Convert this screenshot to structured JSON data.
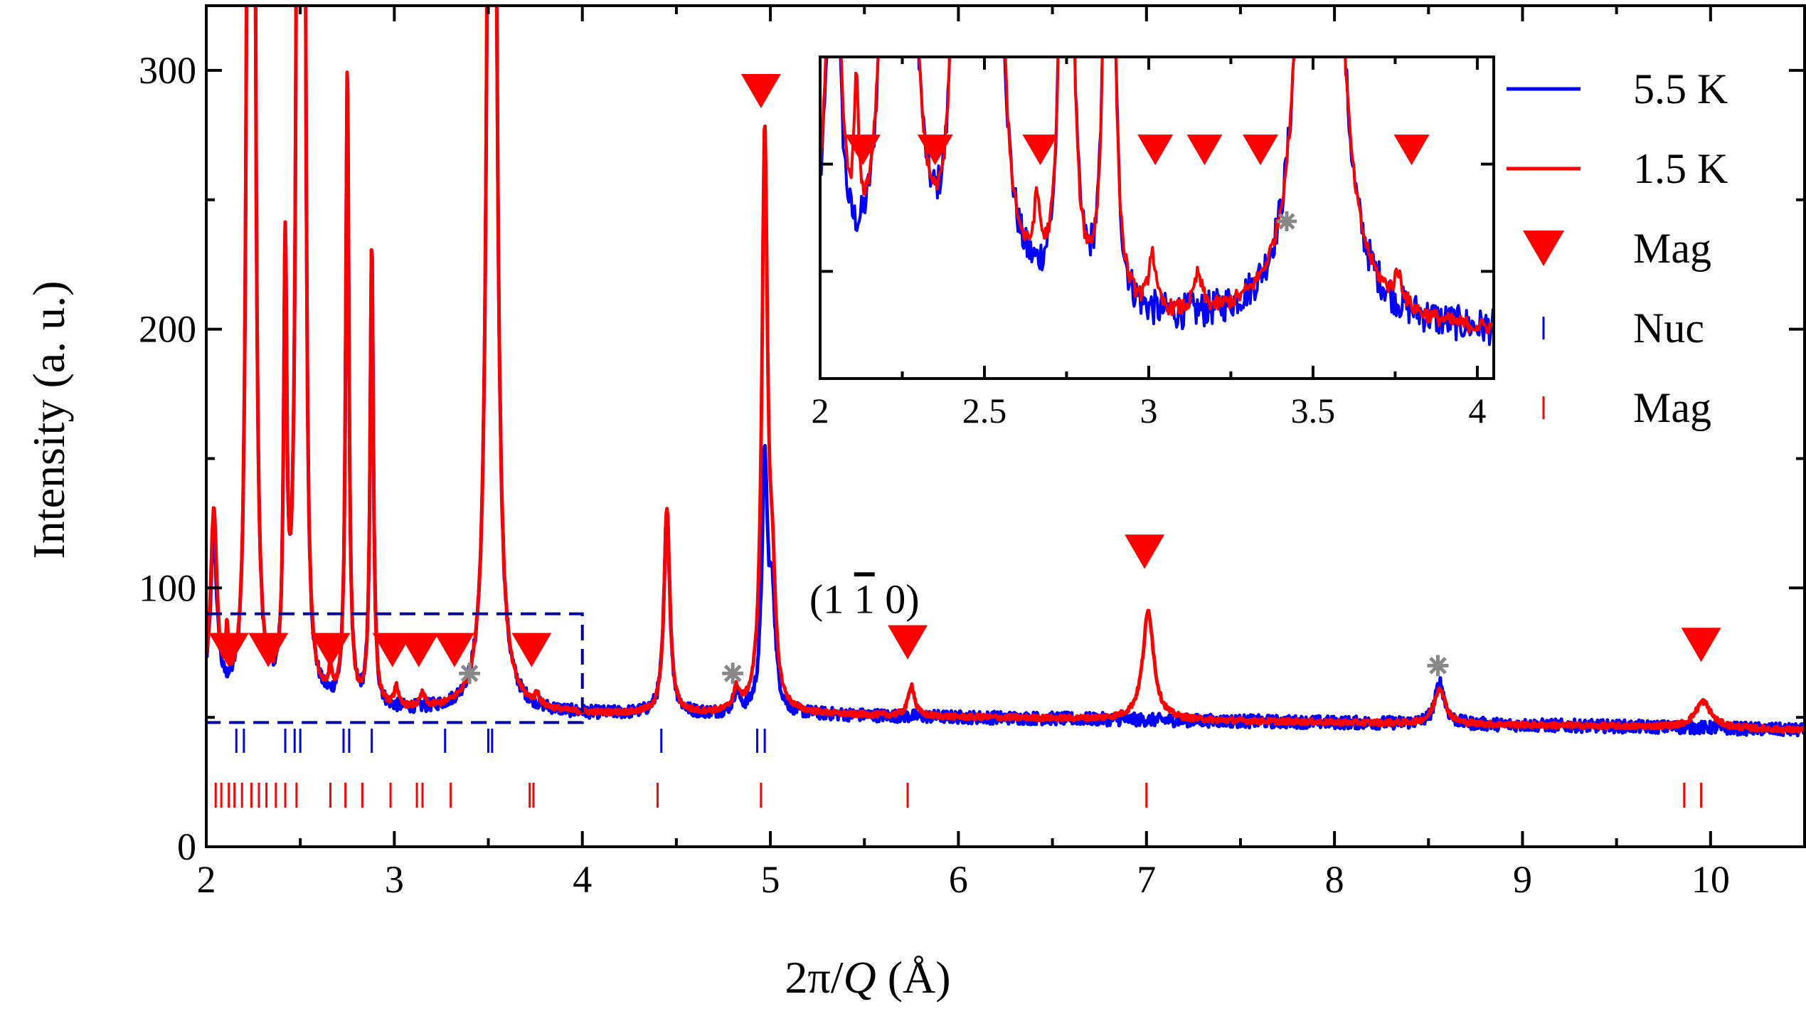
{
  "chart_data": {
    "type": "line",
    "xlabel_prefix": "2π/",
    "xlabel_var": "Q",
    "xlabel_suffix": " (Å)",
    "ylabel": "Intensity (a. u.)",
    "xlim": [
      2,
      10.5
    ],
    "ylim": [
      0,
      325
    ],
    "xticks": [
      2,
      3,
      4,
      5,
      6,
      7,
      8,
      9,
      10
    ],
    "yticks": [
      0,
      100,
      200,
      300
    ],
    "baseline": [
      [
        2.0,
        58
      ],
      [
        2.1,
        55
      ],
      [
        2.3,
        54
      ],
      [
        2.6,
        53
      ],
      [
        3.0,
        52
      ],
      [
        3.3,
        52
      ],
      [
        3.6,
        52
      ],
      [
        4.0,
        51
      ],
      [
        4.5,
        51
      ],
      [
        5.2,
        51
      ],
      [
        6.0,
        50
      ],
      [
        7.0,
        49
      ],
      [
        8.0,
        48
      ],
      [
        9.0,
        47
      ],
      [
        10.0,
        46
      ],
      [
        10.5,
        45
      ]
    ],
    "series": [
      {
        "name": "5.5 K",
        "color": "#0000ff",
        "peaks": [
          [
            2.04,
            60,
            0.02
          ],
          [
            2.22,
            270,
            0.012
          ],
          [
            2.25,
            500,
            0.012
          ],
          [
            2.42,
            165,
            0.01
          ],
          [
            2.49,
            500,
            0.012
          ],
          [
            2.52,
            400,
            0.01
          ],
          [
            2.75,
            245,
            0.01
          ],
          [
            2.88,
            180,
            0.01
          ],
          [
            3.51,
            500,
            0.015
          ],
          [
            3.53,
            300,
            0.02
          ],
          [
            4.45,
            80,
            0.018
          ],
          [
            4.82,
            8,
            0.02
          ],
          [
            4.97,
            95,
            0.018
          ],
          [
            5.01,
            40,
            0.02
          ],
          [
            8.56,
            16,
            0.03
          ]
        ]
      },
      {
        "name": "1.5 K",
        "color": "#ff0000",
        "peaks": [
          [
            2.04,
            70,
            0.02
          ],
          [
            2.11,
            20,
            0.008
          ],
          [
            2.22,
            270,
            0.012
          ],
          [
            2.25,
            500,
            0.012
          ],
          [
            2.42,
            165,
            0.01
          ],
          [
            2.49,
            500,
            0.012
          ],
          [
            2.52,
            400,
            0.01
          ],
          [
            2.66,
            9,
            0.012
          ],
          [
            2.75,
            245,
            0.01
          ],
          [
            2.88,
            180,
            0.01
          ],
          [
            3.01,
            8,
            0.012
          ],
          [
            3.15,
            5,
            0.015
          ],
          [
            3.51,
            500,
            0.015
          ],
          [
            3.53,
            300,
            0.02
          ],
          [
            3.76,
            4,
            0.015
          ],
          [
            4.45,
            80,
            0.018
          ],
          [
            4.82,
            8,
            0.02
          ],
          [
            4.97,
            220,
            0.018
          ],
          [
            5.01,
            40,
            0.02
          ],
          [
            5.75,
            12,
            0.02
          ],
          [
            7.01,
            42,
            0.035
          ],
          [
            8.56,
            14,
            0.035
          ],
          [
            9.96,
            10,
            0.05
          ]
        ]
      }
    ],
    "mag_triangles_main": [
      [
        2.12,
        76
      ],
      [
        2.33,
        76
      ],
      [
        2.66,
        76
      ],
      [
        2.99,
        76
      ],
      [
        3.13,
        76
      ],
      [
        3.32,
        76
      ],
      [
        3.73,
        76
      ],
      [
        4.95,
        292
      ],
      [
        5.73,
        79
      ],
      [
        6.99,
        114
      ],
      [
        9.95,
        78
      ]
    ],
    "asterisks_main": [
      [
        3.4,
        67
      ],
      [
        4.8,
        67
      ],
      [
        8.55,
        70
      ]
    ],
    "nuc_ticks": [
      2.16,
      2.2,
      2.42,
      2.47,
      2.5,
      2.73,
      2.76,
      2.88,
      3.27,
      3.5,
      3.52,
      4.42,
      4.93,
      4.97
    ],
    "mag_ticks": [
      2.05,
      2.08,
      2.12,
      2.15,
      2.19,
      2.24,
      2.28,
      2.32,
      2.37,
      2.42,
      2.48,
      2.66,
      2.74,
      2.83,
      2.98,
      3.12,
      3.15,
      3.3,
      3.72,
      3.74,
      4.4,
      4.95,
      5.73,
      7.0,
      9.86,
      9.95
    ],
    "annotation": {
      "text_open": "(1 ",
      "text_bar": "1",
      "text_close": " 0)",
      "x": 5.5,
      "y": 100
    },
    "inset": {
      "xlim": [
        2,
        4.05
      ],
      "ylim": [
        45,
        90
      ],
      "xticks": [
        2,
        2.5,
        3,
        3.5,
        4
      ],
      "xticklabels": [
        "2",
        "2.5",
        "3",
        "3.5",
        "4"
      ],
      "yticks": [
        60,
        75
      ],
      "triangles": [
        2.13,
        2.35,
        2.67,
        3.02,
        3.17,
        3.34,
        3.8
      ],
      "triangle_y": 77,
      "asterisks": [
        [
          3.42,
          67
        ]
      ]
    },
    "zoom_box": {
      "x": [
        2,
        4
      ],
      "y": [
        48,
        90
      ]
    },
    "legend": [
      {
        "label": "5.5 K",
        "kind": "line",
        "color": "#0000ff"
      },
      {
        "label": "1.5 K",
        "kind": "line",
        "color": "#ff0000"
      },
      {
        "label": "Mag",
        "kind": "triangle",
        "color": "#ff0000"
      },
      {
        "label": "Nuc",
        "kind": "tick",
        "color": "#0000ff"
      },
      {
        "label": "Mag",
        "kind": "tick",
        "color": "#ff0000"
      }
    ]
  }
}
